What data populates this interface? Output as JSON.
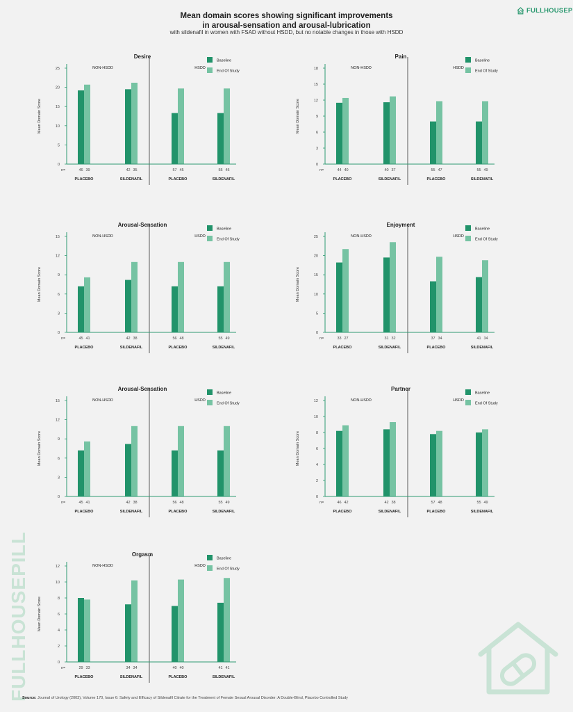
{
  "header": {
    "title_line1": "Mean domain scores showing significant improvements",
    "title_line2": "in arousal-sensation and arousal-lubrication",
    "subtitle": "with sildenafil in women with FSAD without HSDD, but no notable changes in those with HSDD",
    "brand": "FULLHOUSEPILL"
  },
  "footer": {
    "source_label": "Source:",
    "source_text": "Journal of Urology (2003), Volume 170, Issue 6: Safety and Efficacy of Sildenafil Citrate for the Treatment of Female Sexual Arousal Disorder: A Double-Blind, Placebo Controlled Study",
    "vertical_brand": "FULLHOUSEPILL"
  },
  "colors": {
    "baseline": "#21936a",
    "end_of_study": "#76c3a3",
    "axis": "#2e9a72",
    "divider": "#333333",
    "brand_light": "#c9e3d5"
  },
  "chart_common": {
    "ylabel": "Mean Domain Score",
    "legend": [
      "Baseline",
      "End Of Study"
    ],
    "groups": [
      "NON-HSDD",
      "HSDD"
    ],
    "categories": [
      "PLACEBO",
      "SILDENAFIL",
      "PLACEBO",
      "SILDENAFIL"
    ],
    "n_label": "n="
  },
  "chart_data": [
    {
      "type": "bar",
      "title": "Desire",
      "ylim": [
        0,
        25
      ],
      "yticks": [
        0,
        5,
        10,
        15,
        20,
        25
      ],
      "series": [
        {
          "name": "Baseline",
          "values": [
            19.2,
            19.5,
            13.3,
            13.3
          ]
        },
        {
          "name": "End Of Study",
          "values": [
            20.7,
            21.2,
            19.7,
            19.7
          ]
        }
      ],
      "n": [
        [
          "46",
          "39"
        ],
        [
          "42",
          "35"
        ],
        [
          "57",
          "45"
        ],
        [
          "55",
          "45"
        ]
      ]
    },
    {
      "type": "bar",
      "title": "Pain",
      "ylim": [
        0,
        18
      ],
      "yticks": [
        0,
        3,
        6,
        9,
        12,
        15,
        18
      ],
      "series": [
        {
          "name": "Baseline",
          "values": [
            11.5,
            11.6,
            8.0,
            8.0
          ]
        },
        {
          "name": "End Of Study",
          "values": [
            12.4,
            12.7,
            11.8,
            11.8
          ]
        }
      ],
      "n": [
        [
          "44",
          "40"
        ],
        [
          "40",
          "37"
        ],
        [
          "55",
          "47"
        ],
        [
          "55",
          "49"
        ]
      ]
    },
    {
      "type": "bar",
      "title": "Arousal-Sensation",
      "ylim": [
        0,
        15
      ],
      "yticks": [
        0,
        3,
        6,
        9,
        12,
        15
      ],
      "series": [
        {
          "name": "Baseline",
          "values": [
            7.2,
            8.2,
            7.2,
            7.2
          ]
        },
        {
          "name": "End Of Study",
          "values": [
            8.6,
            11.0,
            11.0,
            11.0
          ]
        }
      ],
      "n": [
        [
          "45",
          "41"
        ],
        [
          "42",
          "38"
        ],
        [
          "56",
          "48"
        ],
        [
          "55",
          "49"
        ]
      ]
    },
    {
      "type": "bar",
      "title": "Enjoyment",
      "ylim": [
        0,
        25
      ],
      "yticks": [
        0,
        5,
        10,
        15,
        20,
        25
      ],
      "series": [
        {
          "name": "Baseline",
          "values": [
            18.2,
            19.5,
            13.3,
            14.4
          ]
        },
        {
          "name": "End Of Study",
          "values": [
            21.7,
            23.5,
            19.7,
            18.8
          ]
        }
      ],
      "n": [
        [
          "33",
          "27"
        ],
        [
          "31",
          "32"
        ],
        [
          "37",
          "34"
        ],
        [
          "41",
          "34"
        ]
      ]
    },
    {
      "type": "bar",
      "title": "Arousal-Sensation",
      "ylim": [
        0,
        15
      ],
      "yticks": [
        0,
        3,
        6,
        9,
        12,
        15
      ],
      "series": [
        {
          "name": "Baseline",
          "values": [
            7.2,
            8.2,
            7.2,
            7.2
          ]
        },
        {
          "name": "End Of Study",
          "values": [
            8.6,
            11.0,
            11.0,
            11.0
          ]
        }
      ],
      "n": [
        [
          "45",
          "41"
        ],
        [
          "42",
          "38"
        ],
        [
          "56",
          "48"
        ],
        [
          "55",
          "49"
        ]
      ]
    },
    {
      "type": "bar",
      "title": "Partner",
      "ylim": [
        0,
        12
      ],
      "yticks": [
        0,
        2,
        4,
        6,
        8,
        10,
        12
      ],
      "series": [
        {
          "name": "Baseline",
          "values": [
            8.2,
            8.4,
            7.8,
            8.0
          ]
        },
        {
          "name": "End Of Study",
          "values": [
            8.9,
            9.3,
            8.2,
            8.4
          ]
        }
      ],
      "n": [
        [
          "46",
          "42"
        ],
        [
          "42",
          "38"
        ],
        [
          "57",
          "48"
        ],
        [
          "55",
          "49"
        ]
      ]
    },
    {
      "type": "bar",
      "title": "Orgasm",
      "ylim": [
        0,
        12
      ],
      "yticks": [
        0,
        2,
        4,
        6,
        8,
        10,
        12
      ],
      "series": [
        {
          "name": "Baseline",
          "values": [
            8.0,
            7.2,
            7.0,
            7.4
          ]
        },
        {
          "name": "End Of Study",
          "values": [
            7.8,
            10.2,
            10.3,
            10.5
          ]
        }
      ],
      "n": [
        [
          "29",
          "33"
        ],
        [
          "34",
          "34"
        ],
        [
          "40",
          "40"
        ],
        [
          "41",
          "41"
        ]
      ]
    }
  ]
}
